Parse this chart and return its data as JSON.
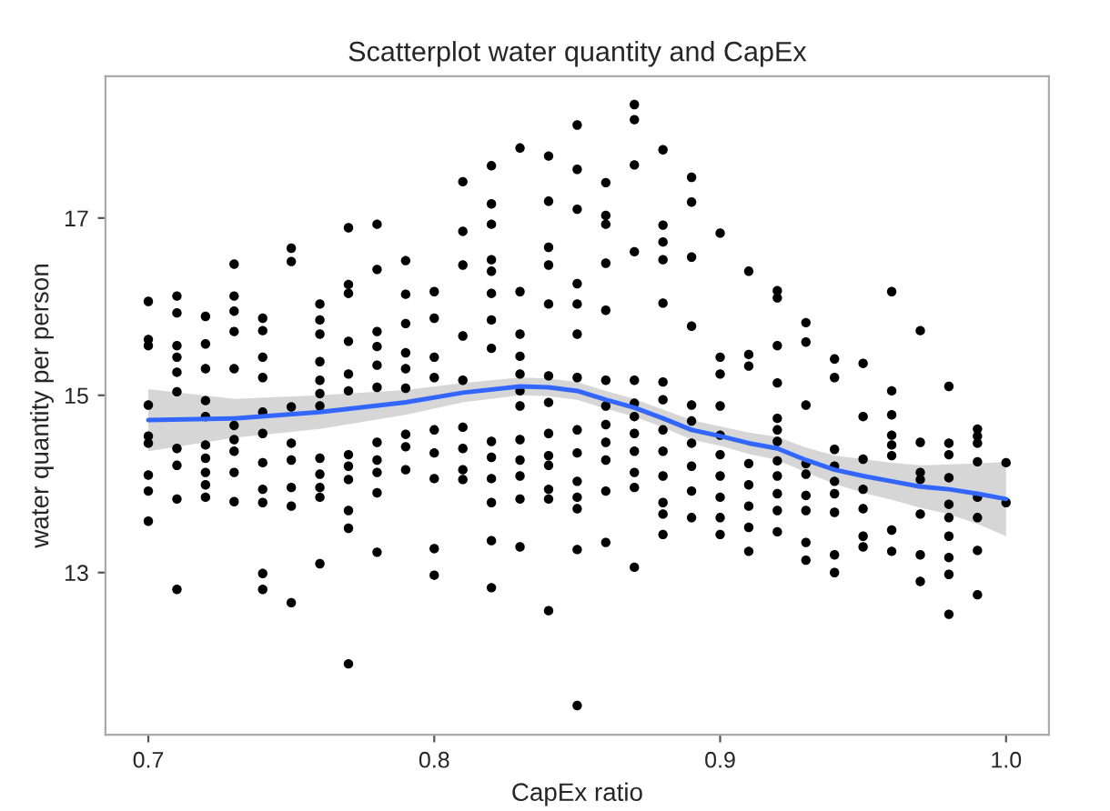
{
  "chart_data": {
    "type": "scatter",
    "title": "Scatterplot water quantity and CapEx",
    "xlabel": "CapEx ratio",
    "ylabel": "water quantity per person",
    "xlim": [
      0.685,
      1.015
    ],
    "ylim": [
      11.17,
      18.6
    ],
    "xticks": [
      0.7,
      0.8,
      0.9,
      {
        "value": 1.0,
        "label": "1.0"
      }
    ],
    "yticks": [
      13,
      15,
      17
    ],
    "grid": false,
    "legend": false,
    "marker": "circle",
    "series": [
      {
        "color": "#000000",
        "x": [
          0.7,
          0.7,
          0.7,
          0.7,
          0.7,
          0.7,
          0.7,
          0.7,
          0.7,
          0.71,
          0.71,
          0.71,
          0.71,
          0.71,
          0.71,
          0.71,
          0.71,
          0.71,
          0.71,
          0.72,
          0.72,
          0.72,
          0.72,
          0.72,
          0.72,
          0.72,
          0.72,
          0.72,
          0.72,
          0.73,
          0.73,
          0.73,
          0.73,
          0.73,
          0.73,
          0.73,
          0.73,
          0.73,
          0.73,
          0.74,
          0.74,
          0.74,
          0.74,
          0.74,
          0.74,
          0.74,
          0.74,
          0.74,
          0.74,
          0.74,
          0.75,
          0.75,
          0.75,
          0.75,
          0.75,
          0.75,
          0.75,
          0.75,
          0.76,
          0.76,
          0.76,
          0.76,
          0.76,
          0.76,
          0.76,
          0.76,
          0.76,
          0.76,
          0.76,
          0.76,
          0.77,
          0.77,
          0.77,
          0.77,
          0.77,
          0.77,
          0.77,
          0.77,
          0.77,
          0.77,
          0.77,
          0.77,
          0.78,
          0.78,
          0.78,
          0.78,
          0.78,
          0.78,
          0.78,
          0.78,
          0.78,
          0.78,
          0.78,
          0.79,
          0.79,
          0.79,
          0.79,
          0.79,
          0.79,
          0.79,
          0.79,
          0.79,
          0.8,
          0.8,
          0.8,
          0.8,
          0.8,
          0.8,
          0.8,
          0.8,
          0.8,
          0.81,
          0.81,
          0.81,
          0.81,
          0.81,
          0.81,
          0.81,
          0.81,
          0.81,
          0.82,
          0.82,
          0.82,
          0.82,
          0.82,
          0.82,
          0.82,
          0.82,
          0.82,
          0.82,
          0.82,
          0.82,
          0.82,
          0.82,
          0.83,
          0.83,
          0.83,
          0.83,
          0.83,
          0.83,
          0.83,
          0.83,
          0.83,
          0.83,
          0.83,
          0.83,
          0.84,
          0.84,
          0.84,
          0.84,
          0.84,
          0.84,
          0.84,
          0.84,
          0.84,
          0.84,
          0.84,
          0.84,
          0.84,
          0.85,
          0.85,
          0.85,
          0.85,
          0.85,
          0.85,
          0.85,
          0.85,
          0.85,
          0.85,
          0.85,
          0.85,
          0.85,
          0.85,
          0.86,
          0.86,
          0.86,
          0.86,
          0.86,
          0.86,
          0.86,
          0.86,
          0.86,
          0.86,
          0.86,
          0.86,
          0.87,
          0.87,
          0.87,
          0.87,
          0.87,
          0.87,
          0.87,
          0.87,
          0.87,
          0.87,
          0.87,
          0.87,
          0.88,
          0.88,
          0.88,
          0.88,
          0.88,
          0.88,
          0.88,
          0.88,
          0.88,
          0.88,
          0.88,
          0.88,
          0.88,
          0.89,
          0.89,
          0.89,
          0.89,
          0.89,
          0.89,
          0.89,
          0.89,
          0.89,
          0.89,
          0.9,
          0.9,
          0.9,
          0.9,
          0.9,
          0.9,
          0.9,
          0.9,
          0.9,
          0.9,
          0.91,
          0.91,
          0.91,
          0.91,
          0.91,
          0.91,
          0.91,
          0.91,
          0.92,
          0.92,
          0.92,
          0.92,
          0.92,
          0.92,
          0.92,
          0.92,
          0.92,
          0.92,
          0.92,
          0.92,
          0.93,
          0.93,
          0.93,
          0.93,
          0.93,
          0.93,
          0.93,
          0.93,
          0.93,
          0.94,
          0.94,
          0.94,
          0.94,
          0.94,
          0.94,
          0.94,
          0.94,
          0.94,
          0.95,
          0.95,
          0.95,
          0.95,
          0.95,
          0.95,
          0.95,
          0.96,
          0.96,
          0.96,
          0.96,
          0.96,
          0.96,
          0.96,
          0.96,
          0.97,
          0.97,
          0.97,
          0.97,
          0.97,
          0.97,
          0.97,
          0.98,
          0.98,
          0.98,
          0.98,
          0.98,
          0.98,
          0.98,
          0.98,
          0.98,
          0.98,
          0.99,
          0.99,
          0.99,
          0.99,
          0.99,
          0.99,
          0.99,
          0.99,
          1.0,
          1.0
        ],
        "values": [
          16.06,
          15.63,
          15.56,
          14.89,
          14.54,
          14.46,
          14.1,
          13.92,
          13.58,
          16.12,
          15.93,
          15.56,
          15.43,
          15.26,
          15.04,
          14.4,
          14.21,
          13.83,
          12.81,
          15.89,
          15.58,
          15.3,
          14.94,
          14.76,
          14.44,
          14.29,
          14.13,
          13.99,
          13.85,
          16.48,
          16.12,
          15.95,
          15.72,
          15.3,
          14.66,
          14.5,
          14.37,
          14.13,
          13.8,
          15.87,
          15.73,
          15.43,
          15.2,
          14.81,
          14.57,
          14.24,
          13.94,
          13.79,
          12.99,
          12.81,
          16.66,
          16.51,
          14.87,
          14.46,
          14.27,
          13.96,
          13.75,
          12.66,
          16.03,
          15.85,
          15.69,
          15.38,
          15.17,
          15.02,
          14.88,
          14.29,
          14.11,
          13.96,
          13.85,
          13.1,
          16.89,
          16.25,
          16.15,
          15.61,
          15.24,
          15.05,
          14.33,
          14.2,
          14.05,
          13.7,
          13.5,
          11.97,
          16.93,
          16.42,
          15.72,
          15.55,
          15.34,
          15.09,
          14.47,
          14.27,
          14.13,
          13.9,
          13.23,
          16.52,
          16.14,
          15.81,
          15.48,
          15.3,
          15.08,
          14.56,
          14.42,
          14.16,
          16.17,
          15.87,
          15.43,
          15.2,
          14.61,
          14.35,
          14.06,
          13.27,
          12.97,
          17.41,
          16.85,
          16.47,
          15.67,
          15.17,
          14.64,
          14.4,
          14.16,
          14.05,
          17.59,
          17.16,
          16.93,
          16.53,
          16.4,
          16.15,
          15.85,
          15.53,
          14.48,
          14.3,
          14.06,
          13.79,
          13.36,
          12.83,
          17.79,
          16.17,
          15.69,
          15.44,
          15.24,
          15.05,
          14.88,
          14.5,
          14.27,
          14.09,
          13.83,
          13.29,
          17.7,
          17.19,
          16.67,
          16.47,
          16.03,
          15.22,
          14.92,
          14.57,
          14.32,
          14.21,
          13.94,
          13.83,
          12.57,
          18.05,
          17.55,
          17.1,
          16.26,
          16.03,
          15.69,
          15.2,
          14.61,
          14.35,
          14.03,
          13.85,
          13.72,
          13.26,
          11.5,
          17.4,
          17.03,
          16.93,
          16.49,
          15.96,
          15.17,
          14.88,
          14.67,
          14.47,
          14.27,
          13.92,
          13.34,
          18.28,
          18.11,
          17.6,
          16.62,
          15.17,
          14.91,
          14.76,
          14.57,
          14.37,
          14.13,
          13.96,
          13.06,
          17.77,
          16.92,
          16.73,
          16.53,
          16.04,
          15.15,
          14.95,
          14.61,
          14.37,
          14.09,
          13.79,
          13.66,
          13.43,
          17.46,
          17.18,
          16.56,
          15.78,
          14.89,
          14.71,
          14.46,
          14.2,
          13.92,
          13.62,
          16.83,
          15.43,
          15.24,
          14.88,
          14.55,
          14.33,
          14.09,
          13.85,
          13.62,
          13.43,
          16.4,
          15.46,
          15.33,
          14.23,
          13.99,
          13.75,
          13.51,
          13.24,
          16.18,
          16.1,
          15.56,
          15.14,
          14.74,
          14.61,
          14.48,
          14.26,
          14.09,
          13.89,
          13.7,
          13.46,
          15.82,
          15.6,
          14.89,
          14.23,
          14.11,
          13.87,
          13.7,
          13.34,
          13.14,
          15.41,
          15.2,
          14.39,
          14.2,
          14.03,
          13.89,
          13.68,
          13.2,
          13.0,
          15.36,
          14.76,
          14.28,
          13.94,
          13.72,
          13.41,
          13.29,
          16.17,
          15.05,
          14.78,
          14.55,
          14.44,
          14.32,
          13.48,
          13.24,
          15.73,
          14.47,
          14.13,
          14.05,
          13.66,
          13.2,
          12.9,
          15.1,
          14.46,
          14.33,
          14.07,
          13.77,
          13.62,
          13.41,
          13.17,
          12.98,
          12.53,
          14.62,
          14.54,
          14.46,
          14.25,
          13.85,
          13.62,
          13.25,
          12.75,
          14.24,
          13.79
        ]
      },
      {
        "type": "line",
        "color": "#3366ff",
        "line_style": "solid",
        "marker": "none",
        "x": [
          0.7,
          0.73,
          0.76,
          0.79,
          0.81,
          0.83,
          0.84,
          0.85,
          0.86,
          0.87,
          0.88,
          0.89,
          0.9,
          0.91,
          0.92,
          0.93,
          0.94,
          0.95,
          0.96,
          0.97,
          0.98,
          0.99,
          1.0
        ],
        "values": [
          14.72,
          14.74,
          14.81,
          14.92,
          15.03,
          15.1,
          15.09,
          15.05,
          14.95,
          14.86,
          14.74,
          14.61,
          14.54,
          14.46,
          14.4,
          14.27,
          14.16,
          14.09,
          14.03,
          13.97,
          13.94,
          13.89,
          13.83
        ],
        "lower": [
          14.37,
          14.52,
          14.62,
          14.78,
          14.92,
          15.0,
          14.99,
          14.95,
          14.85,
          14.76,
          14.64,
          14.5,
          14.43,
          14.34,
          14.27,
          14.13,
          14.0,
          13.9,
          13.82,
          13.73,
          13.66,
          13.55,
          13.41
        ],
        "upper": [
          15.07,
          14.96,
          15.0,
          15.06,
          15.14,
          15.2,
          15.19,
          15.15,
          15.05,
          14.96,
          14.84,
          14.72,
          14.65,
          14.58,
          14.53,
          14.41,
          14.32,
          14.28,
          14.24,
          14.21,
          14.22,
          14.23,
          14.25
        ]
      }
    ]
  }
}
